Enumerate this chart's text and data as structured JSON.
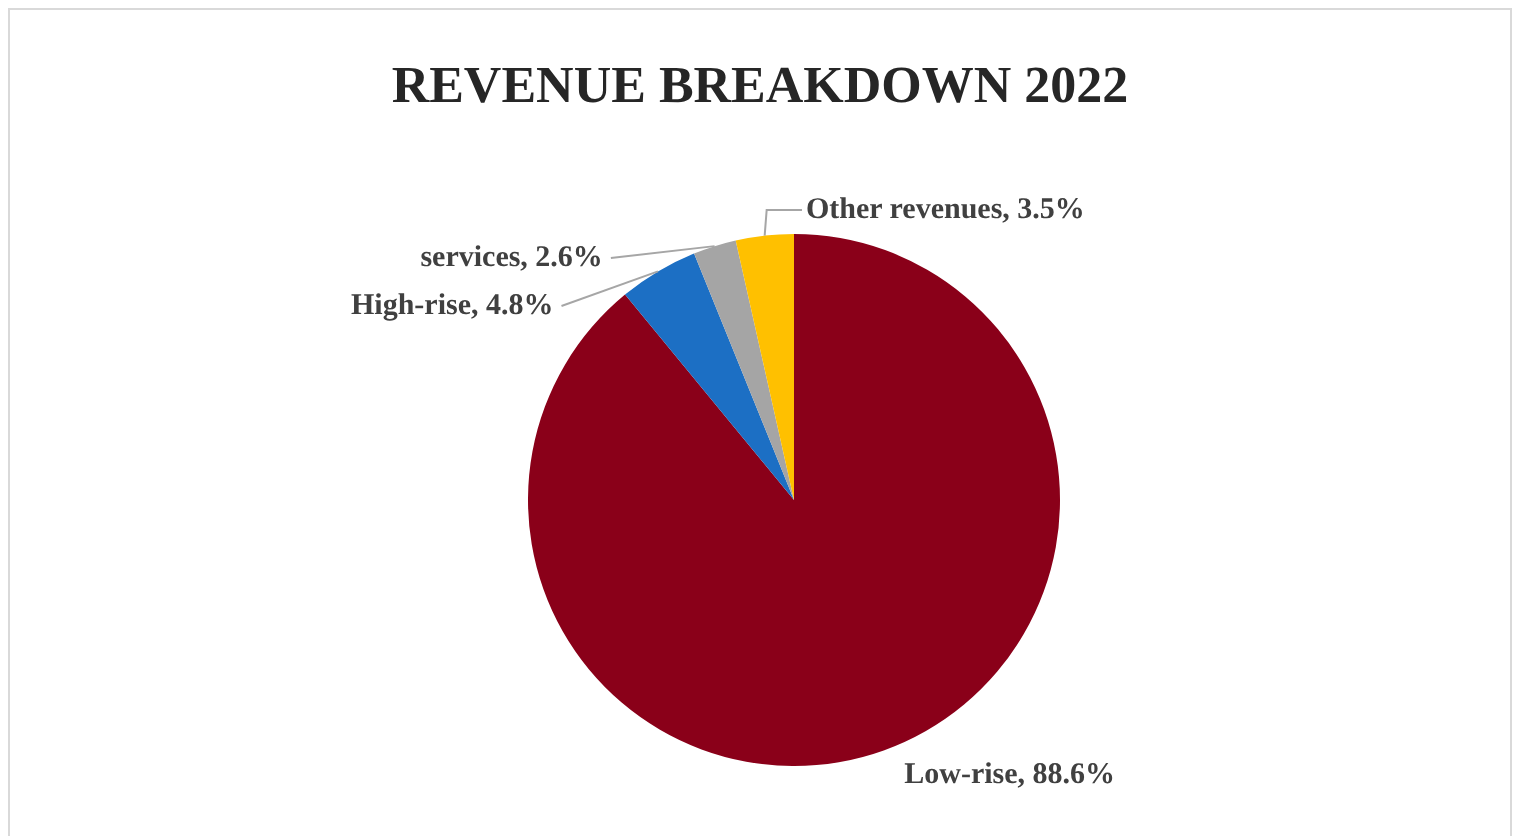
{
  "chart_data": {
    "type": "pie",
    "title": "REVENUE BREAKDOWN 2022",
    "categories": [
      "Low-rise",
      "High-rise",
      "services",
      "Other revenues"
    ],
    "values": [
      88.6,
      4.8,
      2.6,
      3.5
    ],
    "value_labels": [
      "88.6%",
      "4.8%",
      "2.6%",
      "3.5%"
    ],
    "colors": [
      "#8a0019",
      "#1c6fc4",
      "#a5a5a5",
      "#ffc000"
    ],
    "legend": false
  }
}
